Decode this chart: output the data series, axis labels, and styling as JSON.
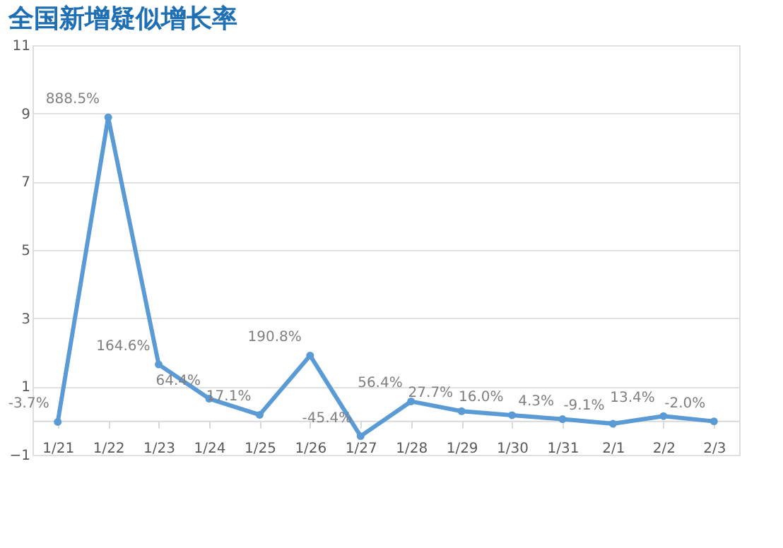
{
  "chart_data": {
    "type": "line",
    "title": "全国新增疑似增长率",
    "categories": [
      "1/21",
      "1/22",
      "1/23",
      "1/24",
      "1/25",
      "1/26",
      "1/27",
      "1/28",
      "1/29",
      "1/30",
      "1/31",
      "2/1",
      "2/2",
      "2/3"
    ],
    "series": [
      {
        "color": "#5b9bd5",
        "values": [
          -0.037,
          8.885,
          1.646,
          0.644,
          0.171,
          1.908,
          -0.454,
          0.564,
          0.277,
          0.16,
          0.043,
          -0.091,
          0.134,
          -0.02
        ],
        "value_labels": [
          "-3.7%",
          "888.5%",
          "164.6%",
          "64.4%",
          "17.1%",
          "190.8%",
          "-45.4%",
          "56.4%",
          "27.7%",
          "16.0%",
          "4.3%",
          "-9.1%",
          "13.4%",
          "-2.0%"
        ]
      }
    ],
    "ylim": [
      -1,
      11
    ],
    "yticks": [
      -1,
      1,
      3,
      5,
      7,
      9,
      11
    ],
    "grid": "y",
    "marker": "circle",
    "line_style": "solid"
  }
}
